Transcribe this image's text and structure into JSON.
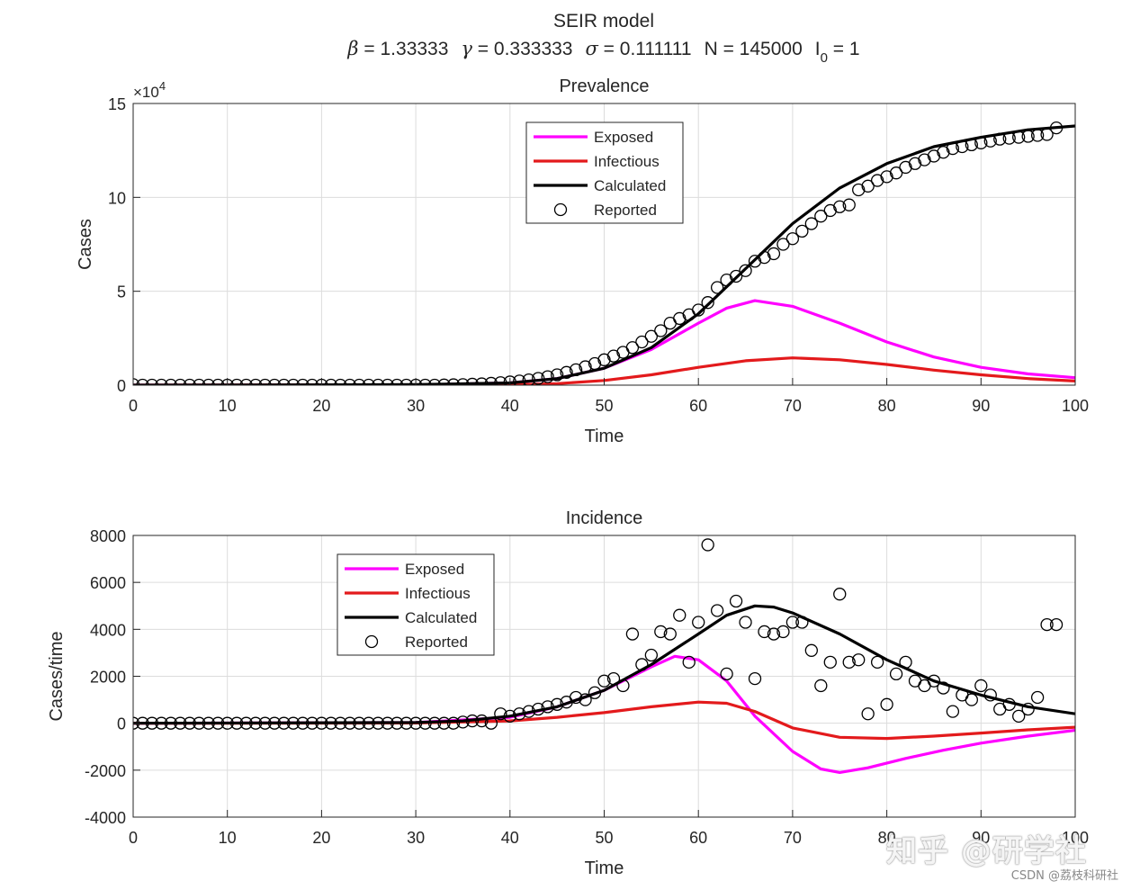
{
  "figure": {
    "title": "SEIR model",
    "params": {
      "beta_sym": "β",
      "beta_val": " = 1.33333",
      "gamma_sym": "γ",
      "gamma_val": " = 0.333333",
      "sigma_sym": "σ",
      "sigma_val": " = 0.111111",
      "n_text": "N = 145000",
      "i0_base": "I",
      "i0_sub": "0",
      "i0_val": " = 1"
    }
  },
  "watermark": {
    "brand": "知乎 @研学社",
    "csdn": "CSDN @荔枝科研社"
  },
  "colors": {
    "exposed": "#ff00ff",
    "infectious": "#e31a1c",
    "calculated": "#000000",
    "reported": "#000000",
    "grid": "#dcdcdc"
  },
  "chart_data": [
    {
      "id": "prevalence",
      "type": "line",
      "title": "Prevalence",
      "xlabel": "Time",
      "ylabel": "Cases",
      "yexponent": "×10",
      "yexponent_power": "4",
      "xlim": [
        0,
        100
      ],
      "ylim": [
        0,
        15
      ],
      "xticks": [
        0,
        10,
        20,
        30,
        40,
        50,
        60,
        70,
        80,
        90,
        100
      ],
      "yticks": [
        0,
        5,
        10,
        15
      ],
      "grid": true,
      "legend_position": "top-center",
      "legend": [
        "Exposed",
        "Infectious",
        "Calculated",
        "Reported"
      ],
      "series": [
        {
          "name": "Exposed",
          "style": "line",
          "color": "#ff00ff",
          "x": [
            0,
            30,
            40,
            45,
            50,
            55,
            60,
            63,
            66,
            70,
            75,
            80,
            85,
            90,
            95,
            100
          ],
          "y": [
            0,
            0.01,
            0.12,
            0.35,
            0.9,
            1.9,
            3.3,
            4.1,
            4.5,
            4.2,
            3.3,
            2.3,
            1.5,
            0.95,
            0.6,
            0.4
          ]
        },
        {
          "name": "Infectious",
          "style": "line",
          "color": "#e31a1c",
          "x": [
            0,
            40,
            45,
            50,
            55,
            60,
            65,
            70,
            75,
            80,
            85,
            90,
            95,
            100
          ],
          "y": [
            0,
            0.02,
            0.08,
            0.25,
            0.55,
            0.95,
            1.3,
            1.45,
            1.35,
            1.1,
            0.8,
            0.55,
            0.35,
            0.22
          ]
        },
        {
          "name": "Calculated",
          "style": "line",
          "color": "#000000",
          "x": [
            0,
            30,
            40,
            45,
            50,
            55,
            60,
            65,
            70,
            75,
            80,
            85,
            90,
            95,
            100
          ],
          "y": [
            0,
            0.03,
            0.12,
            0.35,
            0.9,
            2.0,
            3.8,
            6.2,
            8.6,
            10.5,
            11.8,
            12.7,
            13.2,
            13.6,
            13.8
          ]
        },
        {
          "name": "Reported",
          "style": "marker",
          "color": "#000000",
          "x": [
            0,
            1,
            2,
            3,
            4,
            5,
            6,
            7,
            8,
            9,
            10,
            11,
            12,
            13,
            14,
            15,
            16,
            17,
            18,
            19,
            20,
            21,
            22,
            23,
            24,
            25,
            26,
            27,
            28,
            29,
            30,
            31,
            32,
            33,
            34,
            35,
            36,
            37,
            38,
            39,
            40,
            41,
            42,
            43,
            44,
            45,
            46,
            47,
            48,
            49,
            50,
            51,
            52,
            53,
            54,
            55,
            56,
            57,
            58,
            59,
            60,
            61,
            62,
            63,
            64,
            65,
            66,
            67,
            68,
            69,
            70,
            71,
            72,
            73,
            74,
            75,
            76,
            77,
            78,
            79,
            80,
            81,
            82,
            83,
            84,
            85,
            86,
            87,
            88,
            89,
            90,
            91,
            92,
            93,
            94,
            95,
            96,
            97,
            98
          ],
          "y": [
            0.03,
            0,
            0,
            0,
            0,
            0,
            0,
            0,
            0,
            0,
            0,
            0,
            0,
            0,
            0,
            0,
            0,
            0,
            0,
            0,
            0,
            0,
            0,
            0,
            0,
            0,
            0,
            0,
            0,
            0,
            0,
            0,
            0,
            0.01,
            0.02,
            0.03,
            0.05,
            0.07,
            0.1,
            0.13,
            0.17,
            0.22,
            0.28,
            0.36,
            0.45,
            0.55,
            0.68,
            0.82,
            0.98,
            1.15,
            1.35,
            1.55,
            1.75,
            2.0,
            2.3,
            2.6,
            2.9,
            3.3,
            3.55,
            3.75,
            4.0,
            4.4,
            5.2,
            5.6,
            5.8,
            6.1,
            6.6,
            6.8,
            7.0,
            7.5,
            7.8,
            8.2,
            8.6,
            9.0,
            9.3,
            9.5,
            9.6,
            10.4,
            10.6,
            10.9,
            11.1,
            11.3,
            11.6,
            11.8,
            12.0,
            12.2,
            12.4,
            12.6,
            12.7,
            12.8,
            12.9,
            13.0,
            13.1,
            13.15,
            13.2,
            13.25,
            13.3,
            13.35,
            13.7
          ]
        }
      ]
    },
    {
      "id": "incidence",
      "type": "line",
      "title": "Incidence",
      "xlabel": "Time",
      "ylabel": "Cases/time",
      "xlim": [
        0,
        100
      ],
      "ylim": [
        -4000,
        8000
      ],
      "xticks": [
        0,
        10,
        20,
        30,
        40,
        50,
        60,
        70,
        80,
        90,
        100
      ],
      "yticks": [
        -4000,
        -2000,
        0,
        2000,
        4000,
        6000,
        8000
      ],
      "grid": true,
      "legend_position": "top-left",
      "legend": [
        "Exposed",
        "Infectious",
        "Calculated",
        "Reported"
      ],
      "series": [
        {
          "name": "Exposed",
          "style": "line",
          "color": "#ff00ff",
          "x": [
            0,
            30,
            40,
            45,
            50,
            55,
            57.5,
            60,
            63,
            66,
            70,
            73,
            75,
            78,
            82,
            86,
            90,
            95,
            100
          ],
          "y": [
            0,
            30,
            250,
            700,
            1400,
            2400,
            2850,
            2700,
            1800,
            300,
            -1200,
            -1950,
            -2100,
            -1900,
            -1500,
            -1150,
            -850,
            -550,
            -300
          ]
        },
        {
          "name": "Infectious",
          "style": "line",
          "color": "#e31a1c",
          "x": [
            0,
            30,
            40,
            45,
            50,
            55,
            60,
            63,
            66,
            70,
            75,
            80,
            85,
            90,
            95,
            100
          ],
          "y": [
            0,
            10,
            100,
            250,
            450,
            700,
            900,
            850,
            500,
            -200,
            -600,
            -650,
            -550,
            -420,
            -280,
            -170
          ]
        },
        {
          "name": "Calculated",
          "style": "line",
          "color": "#000000",
          "x": [
            0,
            30,
            35,
            40,
            45,
            50,
            55,
            60,
            63,
            66,
            68,
            70,
            75,
            80,
            85,
            90,
            95,
            100
          ],
          "y": [
            0,
            30,
            100,
            300,
            700,
            1400,
            2500,
            3800,
            4600,
            5000,
            4950,
            4700,
            3800,
            2700,
            1800,
            1200,
            700,
            400
          ]
        },
        {
          "name": "Reported",
          "style": "marker",
          "color": "#000000",
          "x": [
            0,
            1,
            2,
            3,
            4,
            5,
            6,
            7,
            8,
            9,
            10,
            11,
            12,
            13,
            14,
            15,
            16,
            17,
            18,
            19,
            20,
            21,
            22,
            23,
            24,
            25,
            26,
            27,
            28,
            29,
            30,
            31,
            32,
            33,
            34,
            35,
            36,
            37,
            38,
            39,
            40,
            41,
            42,
            43,
            44,
            45,
            46,
            47,
            48,
            49,
            50,
            51,
            52,
            53,
            54,
            55,
            56,
            57,
            58,
            59,
            60,
            61,
            62,
            63,
            64,
            65,
            66,
            67,
            68,
            69,
            70,
            71,
            72,
            73,
            74,
            75,
            76,
            77,
            78,
            79,
            80,
            81,
            82,
            83,
            84,
            85,
            86,
            87,
            88,
            89,
            90,
            91,
            92,
            93,
            94,
            95,
            96,
            97,
            98
          ],
          "y": [
            0,
            0,
            0,
            0,
            0,
            0,
            0,
            0,
            0,
            0,
            0,
            0,
            0,
            0,
            0,
            0,
            0,
            0,
            0,
            0,
            0,
            0,
            0,
            0,
            0,
            0,
            0,
            0,
            0,
            0,
            0,
            0,
            0,
            0,
            0,
            50,
            100,
            100,
            0,
            400,
            300,
            400,
            500,
            600,
            700,
            800,
            900,
            1100,
            1000,
            1300,
            1800,
            1900,
            1600,
            3800,
            2500,
            2900,
            3900,
            3800,
            4600,
            2600,
            4300,
            7600,
            4800,
            2100,
            5200,
            4300,
            1900,
            3900,
            3800,
            3900,
            4300,
            4300,
            3100,
            1600,
            2600,
            5500,
            2600,
            2700,
            400,
            2600,
            800,
            2100,
            2600,
            1800,
            1600,
            1800,
            1500,
            500,
            1200,
            1000,
            1600,
            1200,
            600,
            800,
            300,
            600,
            1100,
            4200,
            4200
          ]
        }
      ]
    }
  ]
}
